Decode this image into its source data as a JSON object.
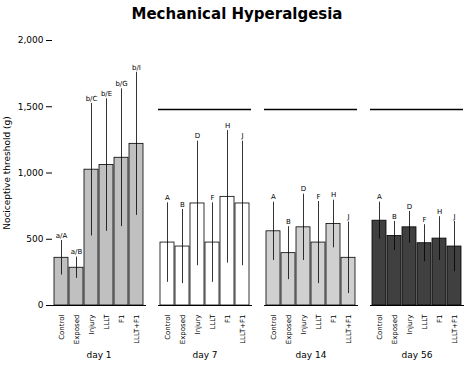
{
  "chart_data": {
    "type": "bar",
    "title": "Mechanical Hyperalgesia",
    "ylabel": "Nociceptive threshold (g)",
    "ylim": [
      0,
      2000
    ],
    "yticks": [
      0,
      500,
      1000,
      1500,
      2000
    ],
    "grid": false,
    "categories": [
      "Control",
      "Exposed",
      "Injury",
      "LLLT",
      "F1",
      "LLLT+F1"
    ],
    "series": [
      {
        "name": "day 1",
        "color": "#c0c0c0",
        "values": [
          360,
          285,
          1025,
          1060,
          1115,
          1220
        ],
        "errors": [
          130,
          80,
          500,
          500,
          520,
          540
        ],
        "stat_labels": [
          "a/A",
          "a/B",
          "b/C",
          "b/E",
          "b/G",
          "b/I"
        ]
      },
      {
        "name": "day 7",
        "color": "white",
        "values": [
          475,
          445,
          770,
          475,
          820,
          770
        ],
        "errors": [
          300,
          280,
          470,
          300,
          500,
          470
        ],
        "stat_labels": [
          "A",
          "B",
          "D",
          "F",
          "H",
          "J"
        ]
      },
      {
        "name": "day 14",
        "color": "#d0d0d0",
        "values": [
          560,
          395,
          590,
          475,
          615,
          360
        ],
        "errors": [
          220,
          200,
          250,
          310,
          180,
          270
        ],
        "stat_labels": [
          "A",
          "B",
          "D",
          "F",
          "H",
          "J"
        ]
      },
      {
        "name": "day 56",
        "color": "#404040",
        "values": [
          640,
          525,
          590,
          470,
          505,
          445
        ],
        "errors": [
          140,
          110,
          120,
          140,
          165,
          190
        ],
        "stat_labels": [
          "A",
          "B",
          "D",
          "F",
          "H",
          "J"
        ]
      }
    ],
    "bracket_y": 1480,
    "bracket_groups": [
      "day 7",
      "day 14",
      "day 56"
    ]
  }
}
